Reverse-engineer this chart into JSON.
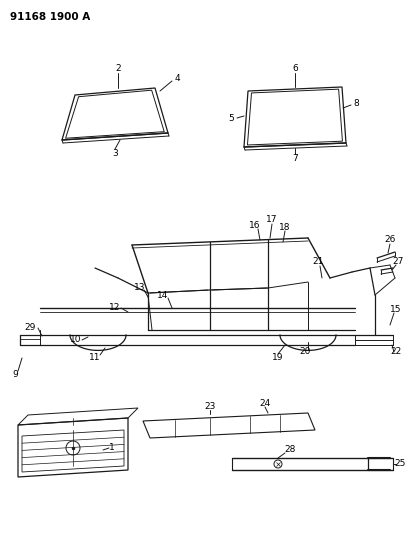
{
  "title": "91168 1900 A",
  "background_color": "#ffffff",
  "line_color": "#1a1a1a",
  "figsize": [
    4.06,
    5.33
  ],
  "dpi": 100
}
